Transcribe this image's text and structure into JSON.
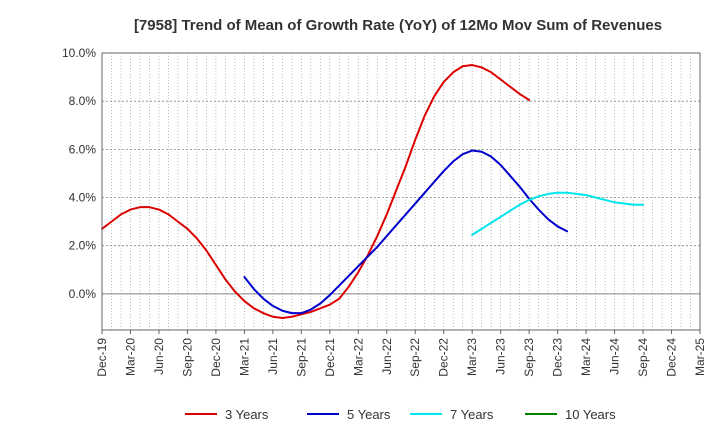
{
  "chart_data": {
    "type": "line",
    "title": "[7958]  Trend of Mean of Growth Rate (YoY) of 12Mo Mov Sum of Revenues",
    "xlabel": "",
    "ylabel": "",
    "ylim": [
      -1.5,
      10.0
    ],
    "yticks": [
      0,
      2,
      4,
      6,
      8,
      10
    ],
    "ytick_labels": [
      "0.0%",
      "2.0%",
      "4.0%",
      "6.0%",
      "8.0%",
      "10.0%"
    ],
    "x_categories": [
      "Dec-19",
      "Mar-20",
      "Jun-20",
      "Sep-20",
      "Dec-20",
      "Mar-21",
      "Jun-21",
      "Sep-21",
      "Dec-21",
      "Mar-22",
      "Jun-22",
      "Sep-22",
      "Dec-22",
      "Mar-23",
      "Jun-23",
      "Sep-23",
      "Dec-23",
      "Mar-24",
      "Jun-24",
      "Sep-24",
      "Dec-24",
      "Mar-25"
    ],
    "grid": true,
    "legend_position": "bottom",
    "series": [
      {
        "name": "3 Years",
        "color": "#dd0000",
        "start_index": 0,
        "values": [
          2.7,
          3.0,
          3.3,
          3.5,
          3.6,
          3.6,
          3.5,
          3.3,
          3.0,
          2.7,
          2.3,
          1.8,
          1.2,
          0.6,
          0.1,
          -0.3,
          -0.6,
          -0.8,
          -0.95,
          -1.0,
          -0.95,
          -0.85,
          -0.75,
          -0.6,
          -0.45,
          -0.2,
          0.3,
          0.9,
          1.6,
          2.4,
          3.3,
          4.3,
          5.3,
          6.4,
          7.4,
          8.2,
          8.8,
          9.2,
          9.45,
          9.5,
          9.4,
          9.2,
          8.9,
          8.6,
          8.3,
          8.05
        ]
      },
      {
        "name": "5 Years",
        "color": "#0000cc",
        "start_index": 15,
        "values": [
          0.7,
          0.2,
          -0.2,
          -0.5,
          -0.7,
          -0.8,
          -0.8,
          -0.65,
          -0.4,
          -0.05,
          0.35,
          0.75,
          1.15,
          1.55,
          1.95,
          2.4,
          2.85,
          3.3,
          3.75,
          4.2,
          4.65,
          5.1,
          5.5,
          5.8,
          5.95,
          5.9,
          5.7,
          5.35,
          4.9,
          4.45,
          3.95,
          3.5,
          3.1,
          2.8,
          2.6
        ]
      },
      {
        "name": "7 Years",
        "color": "#00e5ee",
        "start_index": 39,
        "values": [
          2.45,
          2.7,
          2.95,
          3.2,
          3.45,
          3.7,
          3.9,
          4.05,
          4.15,
          4.2,
          4.2,
          4.15,
          4.1,
          4.0,
          3.9,
          3.8,
          3.75,
          3.7,
          3.7
        ]
      },
      {
        "name": "10 Years",
        "color": "#008000",
        "start_index": 0,
        "values": []
      }
    ]
  }
}
